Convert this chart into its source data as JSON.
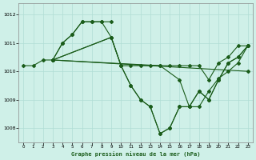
{
  "title": "Graphe pression niveau de la mer (hPa)",
  "bg_color": "#cff0e8",
  "grid_color": "#b0ddd4",
  "line_color": "#1a5c1a",
  "marker": "D",
  "markersize": 2.0,
  "linewidth": 0.8,
  "xlim": [
    -0.5,
    23.5
  ],
  "ylim": [
    1007.5,
    1012.4
  ],
  "yticks": [
    1008,
    1009,
    1010,
    1011,
    1012
  ],
  "xticks": [
    0,
    1,
    2,
    3,
    4,
    5,
    6,
    7,
    8,
    9,
    10,
    11,
    12,
    13,
    14,
    15,
    16,
    17,
    18,
    19,
    20,
    21,
    22,
    23
  ],
  "series": [
    {
      "x": [
        0,
        1,
        2,
        3,
        4,
        5,
        6,
        7,
        8,
        9
      ],
      "y": [
        1010.2,
        1010.2,
        1010.4,
        1010.4,
        1011.0,
        1011.3,
        1011.75,
        1011.75,
        1011.75,
        1011.75
      ]
    },
    {
      "x": [
        3,
        4,
        5,
        6,
        7,
        8,
        9,
        10,
        11,
        12,
        13,
        14,
        15,
        16,
        17,
        18,
        19,
        20,
        21,
        22,
        23
      ],
      "y": [
        1010.4,
        1011.0,
        1011.3,
        1011.75,
        1011.75,
        1011.75,
        1011.2,
        1010.2,
        1010.2,
        1010.2,
        1010.2,
        1010.2,
        1010.2,
        1010.2,
        1010.2,
        1010.2,
        1009.7,
        1010.3,
        1010.5,
        1010.9,
        1010.9
      ]
    },
    {
      "x": [
        3,
        9,
        10,
        11,
        12,
        13,
        14,
        15,
        16,
        17,
        18,
        19,
        20,
        21,
        22,
        23
      ],
      "y": [
        1010.4,
        1011.2,
        1010.2,
        1009.5,
        1009.0,
        1008.75,
        1007.8,
        1008.0,
        1008.75,
        1008.75,
        1009.3,
        1009.0,
        1009.7,
        1010.3,
        1010.5,
        1010.9
      ]
    },
    {
      "x": [
        3,
        9,
        10,
        11,
        12,
        13,
        14,
        15,
        16,
        17,
        18,
        19,
        20,
        21,
        22,
        23
      ],
      "y": [
        1010.4,
        1011.2,
        1010.2,
        1009.5,
        1009.0,
        1008.75,
        1007.8,
        1008.0,
        1008.75,
        1008.75,
        1009.3,
        1009.0,
        1009.7,
        1010.3,
        1010.5,
        1010.9
      ]
    },
    {
      "x": [
        3,
        23
      ],
      "y": [
        1010.4,
        1010.0
      ]
    },
    {
      "x": [
        3,
        14,
        16,
        17,
        18,
        19,
        20,
        21,
        22,
        23
      ],
      "y": [
        1010.4,
        1010.2,
        1009.7,
        1008.75,
        1008.75,
        1009.3,
        1009.75,
        1010.0,
        1010.3,
        1010.9
      ]
    }
  ]
}
